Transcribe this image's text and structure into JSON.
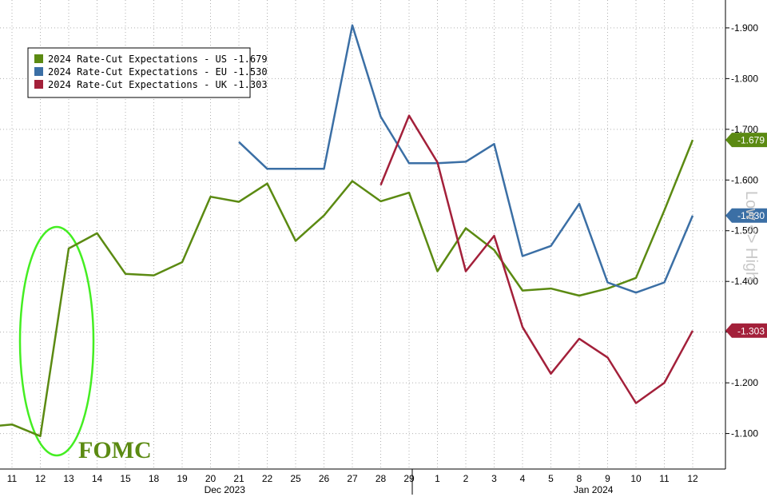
{
  "chart_data": {
    "type": "line",
    "categories": [
      "11",
      "12",
      "13",
      "14",
      "15",
      "18",
      "19",
      "20",
      "21",
      "22",
      "25",
      "26",
      "27",
      "28",
      "29",
      "1",
      "2",
      "3",
      "4",
      "5",
      "8",
      "9",
      "10",
      "11",
      "12"
    ],
    "month_labels": [
      {
        "text": "Dec 2023",
        "category_index": 7.5
      },
      {
        "text": "Jan 2024",
        "category_index": 20.5
      }
    ],
    "ylim": [
      1.03,
      1.955
    ],
    "yticks": [
      {
        "value": 1.1,
        "label": "1.100"
      },
      {
        "value": 1.2,
        "label": "1.200"
      },
      {
        "value": 1.3,
        "label": "1.300"
      },
      {
        "value": 1.4,
        "label": "1.400"
      },
      {
        "value": 1.5,
        "label": "1.500"
      },
      {
        "value": 1.6,
        "label": "1.600"
      },
      {
        "value": 1.7,
        "label": "1.700"
      },
      {
        "value": 1.8,
        "label": "1.800"
      },
      {
        "value": 1.9,
        "label": "1.900"
      }
    ],
    "grid": true,
    "legend_position": "top-left",
    "side_axis_label": "Low <> High",
    "series": [
      {
        "name": "2024 Rate-Cut Expectations - US",
        "last_label": "-1.679",
        "badge": "-1.679",
        "last_value": 1.679,
        "color": "#5b8a12",
        "values": [
          1.118,
          1.095,
          1.465,
          1.495,
          1.415,
          1.412,
          1.438,
          1.567,
          1.557,
          1.593,
          1.48,
          1.53,
          1.598,
          1.558,
          1.575,
          1.42,
          1.505,
          1.462,
          1.382,
          1.386,
          1.372,
          1.386,
          1.407,
          1.54,
          1.679
        ],
        "pre_start_value": 1.115
      },
      {
        "name": "2024 Rate-Cut Expectations - EU",
        "last_label": "-1.530",
        "badge": "-1.530",
        "last_value": 1.53,
        "color": "#3b6fa5",
        "values": [
          null,
          null,
          null,
          null,
          null,
          null,
          null,
          null,
          1.675,
          1.622,
          1.622,
          1.622,
          1.905,
          1.725,
          1.633,
          1.633,
          1.636,
          1.671,
          1.45,
          1.47,
          1.553,
          1.398,
          1.378,
          1.398,
          1.53
        ]
      },
      {
        "name": "2024 Rate-Cut Expectations - UK",
        "last_label": "-1.303",
        "badge": "-1.303",
        "last_value": 1.303,
        "color": "#a3203a",
        "values": [
          null,
          null,
          null,
          null,
          null,
          null,
          null,
          null,
          null,
          null,
          null,
          null,
          null,
          1.59,
          1.727,
          1.635,
          1.42,
          1.49,
          1.31,
          1.218,
          1.287,
          1.25,
          1.16,
          1.2,
          1.303
        ]
      }
    ],
    "annotations": [
      {
        "text": "FOMC",
        "color": "#5b8a12",
        "ellipse_color": "#44ee22"
      }
    ]
  }
}
